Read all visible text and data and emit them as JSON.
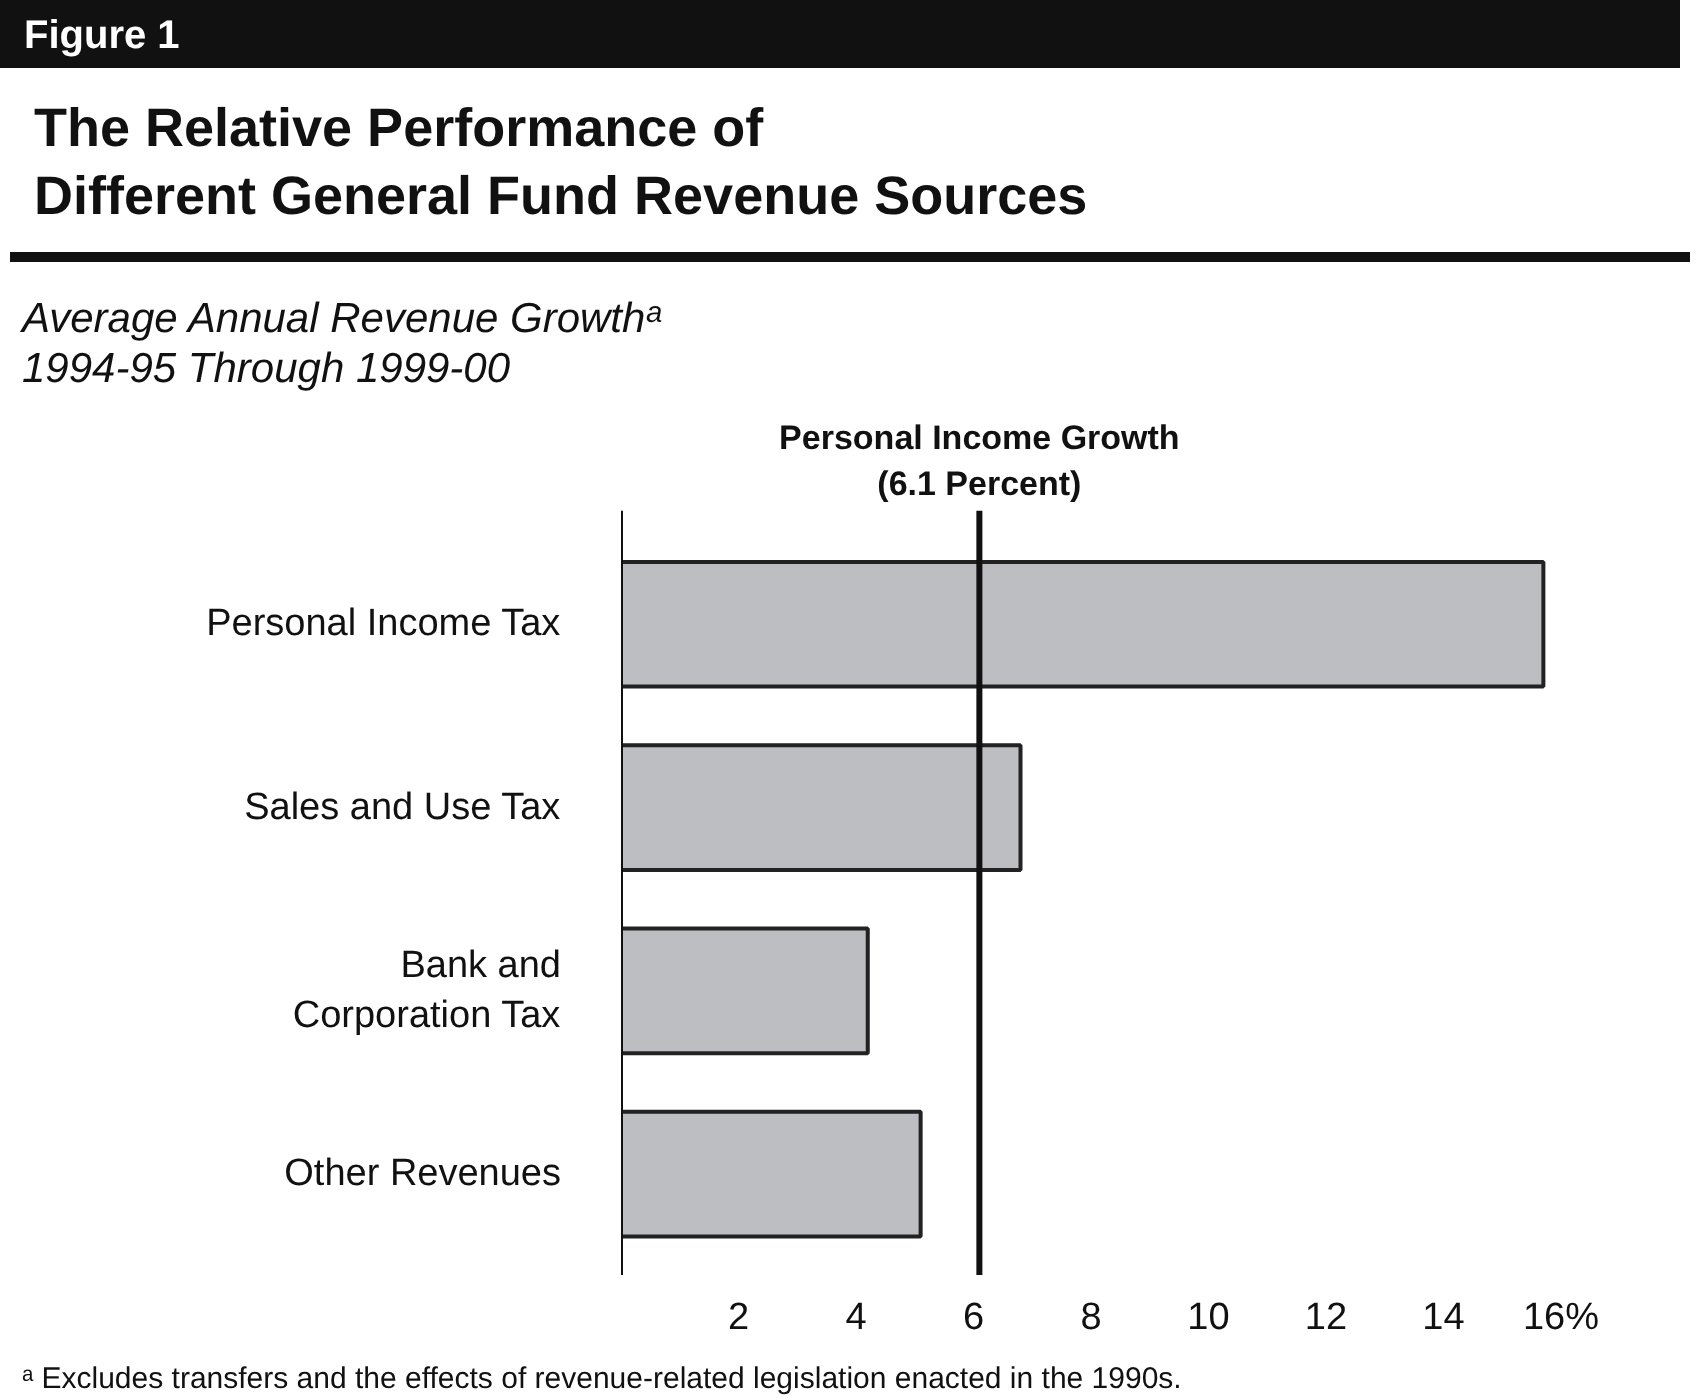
{
  "chart_data": {
    "type": "bar",
    "orientation": "horizontal",
    "title": "The Relative Performance of\nDifferent General Fund Revenue Sources",
    "subtitle": "Average Annual Revenue Growthᵃ\n1994-95 Through 1999-00",
    "categories": [
      "Personal Income Tax",
      "Sales and Use Tax",
      "Bank and\nCorporation Tax",
      "Other Revenues"
    ],
    "values": [
      15.7,
      6.8,
      4.2,
      5.1
    ],
    "color": "#bcbec2",
    "xlim": [
      0,
      16
    ],
    "xticks": [
      2,
      4,
      6,
      8,
      10,
      12,
      14,
      {
        "value": 16,
        "label": "16%"
      }
    ],
    "grid": false,
    "ref_lines": [
      {
        "axis": "x",
        "value": 6.1,
        "label": "Personal Income Growth\n(6.1 Percent)"
      }
    ],
    "annotations": [
      "Figure 1",
      "ᵃ Excludes transfers and the effects of revenue-related legislation enacted in the 1990s."
    ]
  }
}
